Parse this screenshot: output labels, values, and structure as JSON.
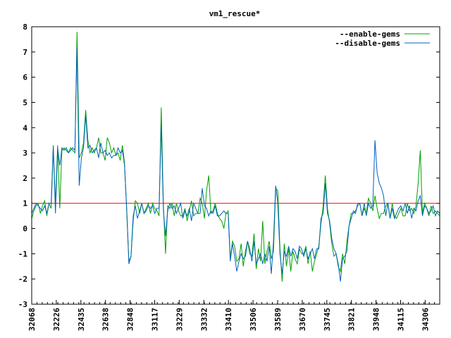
{
  "chart_data": {
    "type": "line",
    "title": "vm1_rescue*",
    "xlabel": "",
    "ylabel": "",
    "ylim": [
      -3,
      8
    ],
    "yticks": [
      -3,
      -2,
      -1,
      0,
      1,
      2,
      3,
      4,
      5,
      6,
      7,
      8
    ],
    "xtick_labels": [
      "32068",
      "32226",
      "32435",
      "32638",
      "32848",
      "33117",
      "33229",
      "33332",
      "33410",
      "33506",
      "33589",
      "33670",
      "33745",
      "33821",
      "33948",
      "34115",
      "34306"
    ],
    "grid": false,
    "legend_position": "top-right",
    "reference_line": {
      "y": 1,
      "color": "#ff0000"
    },
    "series": [
      {
        "name": "--enable-gems",
        "color": "#00a000",
        "values": [
          0.4,
          0.7,
          0.9,
          1.0,
          0.6,
          0.9,
          1.1,
          0.5,
          1.0,
          0.8,
          3.2,
          1.0,
          3.3,
          0.8,
          3.1,
          3.2,
          3.1,
          3.0,
          3.2,
          3.1,
          3.0,
          7.8,
          2.8,
          3.0,
          3.4,
          4.7,
          3.5,
          3.0,
          3.2,
          3.0,
          3.2,
          3.6,
          3.0,
          3.0,
          2.7,
          3.6,
          3.4,
          3.0,
          3.2,
          2.9,
          3.0,
          2.7,
          3.3,
          2.6,
          0.7,
          -1.3,
          -1.1,
          0.3,
          1.1,
          1.0,
          0.6,
          1.0,
          0.6,
          0.8,
          1.0,
          0.6,
          1.0,
          0.8,
          0.7,
          0.5,
          4.8,
          0.9,
          -1.0,
          0.9,
          0.8,
          1.0,
          0.5,
          1.0,
          0.7,
          0.5,
          0.5,
          0.8,
          0.3,
          0.7,
          1.1,
          0.5,
          0.6,
          0.6,
          1.2,
          1.0,
          0.4,
          1.5,
          2.1,
          0.6,
          0.7,
          1.0,
          0.6,
          0.4,
          0.3,
          0.0,
          0.6,
          0.7,
          -1.2,
          -0.5,
          -0.7,
          -1.3,
          -1.2,
          -0.6,
          -1.5,
          -0.9,
          -0.5,
          -1.0,
          -1.1,
          -0.2,
          -1.6,
          -0.8,
          -1.3,
          0.3,
          -1.4,
          -0.9,
          -0.5,
          -1.2,
          -0.9,
          1.6,
          1.5,
          -0.8,
          -2.1,
          -0.6,
          -1.5,
          -0.8,
          -1.7,
          -0.9,
          -1.2,
          -1.4,
          -0.8,
          -1.0,
          -1.0,
          -0.7,
          -1.4,
          -0.9,
          -1.7,
          -1.3,
          -1.0,
          -0.7,
          0.2,
          0.9,
          2.1,
          0.8,
          0.2,
          -0.6,
          -1.1,
          -1.0,
          -1.5,
          -1.7,
          -1.0,
          -1.4,
          -0.5,
          0.1,
          0.6,
          0.6,
          0.7,
          0.9,
          1.0,
          0.5,
          0.8,
          0.6,
          1.2,
          1.0,
          0.7,
          1.3,
          0.8,
          0.4,
          0.6,
          0.6,
          0.9,
          1.0,
          0.4,
          1.0,
          0.5,
          0.4,
          0.6,
          0.8,
          0.5,
          0.5,
          1.0,
          0.7,
          0.8,
          0.6,
          0.9,
          1.8,
          3.1,
          0.6,
          1.0,
          0.8,
          0.5,
          0.9,
          0.6,
          0.7,
          0.6,
          0.5
        ]
      },
      {
        "name": "--disable-gems",
        "color": "#0060c0",
        "values": [
          0.6,
          0.8,
          1.0,
          0.9,
          0.8,
          0.7,
          0.9,
          0.6,
          1.0,
          1.0,
          3.3,
          0.6,
          3.2,
          2.5,
          3.2,
          3.1,
          3.2,
          3.0,
          3.1,
          3.2,
          3.1,
          7.2,
          1.7,
          2.8,
          3.2,
          4.5,
          3.2,
          3.3,
          3.0,
          3.1,
          3.2,
          2.8,
          3.4,
          3.0,
          3.1,
          2.9,
          3.0,
          2.8,
          2.9,
          2.9,
          3.2,
          3.0,
          3.1,
          2.5,
          0.8,
          -1.4,
          -1.1,
          0.5,
          0.9,
          0.4,
          0.7,
          1.0,
          0.6,
          0.7,
          0.9,
          0.8,
          0.9,
          0.6,
          0.8,
          0.8,
          4.1,
          0.7,
          -0.3,
          0.7,
          1.0,
          0.8,
          0.9,
          0.6,
          0.8,
          1.0,
          0.4,
          0.7,
          0.5,
          0.8,
          0.3,
          1.0,
          0.8,
          0.6,
          0.6,
          1.6,
          0.9,
          0.8,
          0.5,
          0.7,
          0.6,
          0.9,
          0.5,
          0.5,
          0.6,
          0.7,
          0.6,
          0.6,
          -1.3,
          -0.6,
          -1.1,
          -1.7,
          -1.3,
          -1.0,
          -1.2,
          -1.1,
          -0.5,
          -0.8,
          -1.3,
          -0.5,
          -1.4,
          -1.2,
          -1.0,
          -1.4,
          -1.0,
          -1.3,
          -0.7,
          -1.8,
          -0.5,
          1.7,
          1.0,
          -1.0,
          -1.8,
          -0.9,
          -1.1,
          -0.7,
          -1.1,
          -0.8,
          -0.9,
          -1.2,
          -0.7,
          -0.8,
          -1.1,
          -0.8,
          -1.2,
          -1.0,
          -0.8,
          -1.2,
          -0.8,
          -0.8,
          0.4,
          0.6,
          1.8,
          0.6,
          0.3,
          -0.4,
          -0.8,
          -1.0,
          -1.4,
          -2.1,
          -1.2,
          -1.1,
          -0.9,
          0.1,
          0.4,
          0.7,
          0.6,
          1.0,
          1.0,
          0.5,
          1.0,
          0.5,
          1.0,
          0.8,
          0.9,
          3.5,
          2.2,
          1.8,
          1.6,
          1.3,
          0.5,
          1.0,
          0.4,
          0.8,
          0.4,
          0.6,
          0.8,
          0.9,
          0.7,
          1.0,
          0.6,
          0.9,
          0.4,
          0.8,
          0.7,
          1.1,
          1.3,
          0.5,
          0.9,
          0.8,
          0.6,
          0.7,
          0.9,
          0.5,
          0.7,
          0.6
        ]
      }
    ]
  }
}
